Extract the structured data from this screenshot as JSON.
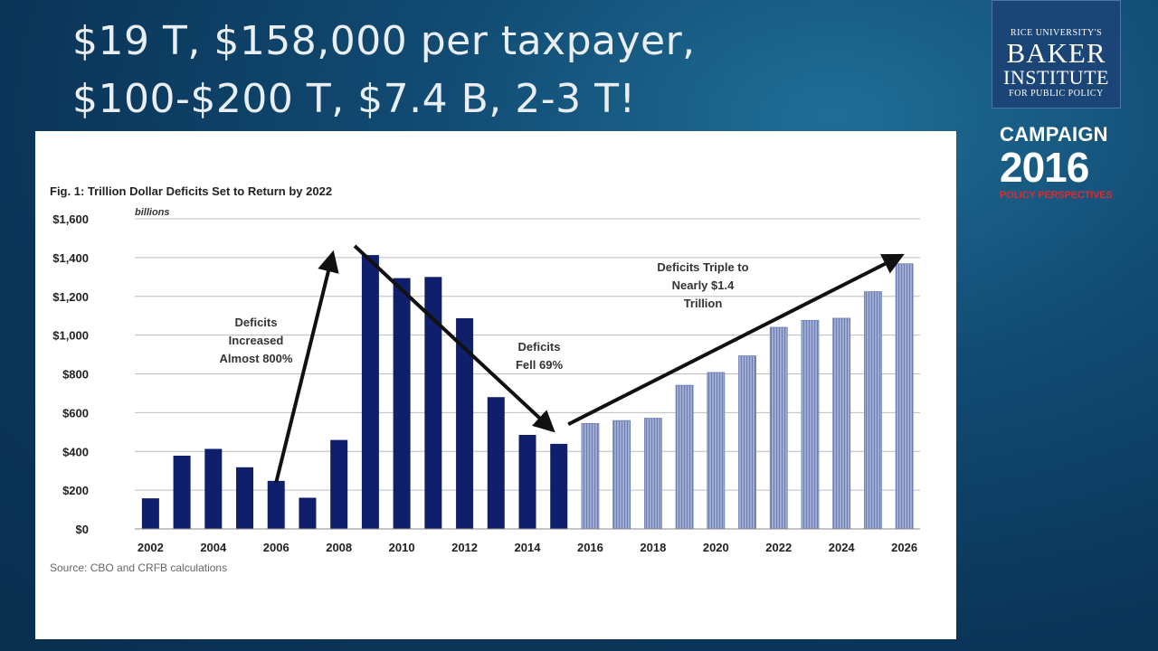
{
  "slide": {
    "title_lines": [
      "$19 T, $158,000 per taxpayer,",
      "$100-$200 T, $7.4 B, 2-3 T!"
    ]
  },
  "logo": {
    "line1": "RICE UNIVERSITY'S",
    "line2": "BAKER",
    "line3": "INSTITUTE",
    "line4": "FOR PUBLIC POLICY"
  },
  "campaign": {
    "line1": "CAMPAIGN",
    "line2": "2016",
    "line3": "POLICY PERSPECTIVES",
    "accent_color": "#e02a30"
  },
  "chart_data": {
    "type": "bar",
    "title": "Fig. 1: Trillion Dollar Deficits Set to Return by 2022",
    "unit_label": "billions",
    "source": "Source: CBO and CRFB calculations",
    "ylim": [
      0,
      1600
    ],
    "yticks": [
      0,
      200,
      400,
      600,
      800,
      1000,
      1200,
      1400,
      1600
    ],
    "ytick_labels": [
      "$0",
      "$200",
      "$400",
      "$600",
      "$800",
      "$1,000",
      "$1,200",
      "$1,400",
      "$1,600"
    ],
    "grid": true,
    "x": [
      2002,
      2003,
      2004,
      2005,
      2006,
      2007,
      2008,
      2009,
      2010,
      2011,
      2012,
      2013,
      2014,
      2015,
      2016,
      2017,
      2018,
      2019,
      2020,
      2021,
      2022,
      2023,
      2024,
      2025,
      2026
    ],
    "xtick_labels": [
      "2002",
      "2004",
      "2006",
      "2008",
      "2010",
      "2012",
      "2014",
      "2016",
      "2018",
      "2020",
      "2022",
      "2024",
      "2026"
    ],
    "series": [
      {
        "values": [
          158,
          378,
          413,
          318,
          248,
          161,
          459,
          1413,
          1294,
          1300,
          1087,
          680,
          485,
          439,
          null,
          null,
          null,
          null,
          null,
          null,
          null,
          null,
          null,
          null,
          null
        ],
        "color": "#0f1f6b"
      },
      {
        "values": [
          null,
          null,
          null,
          null,
          null,
          null,
          null,
          null,
          null,
          null,
          null,
          null,
          null,
          null,
          544,
          559,
          571,
          741,
          807,
          893,
          1040,
          1076,
          1087,
          1224,
          1368
        ],
        "color": "#8d9dc9"
      }
    ],
    "annotations": [
      {
        "lines": [
          "Deficits",
          "Increased",
          "Almost 800%"
        ],
        "from": [
          2006,
          240
        ],
        "to": [
          2007.8,
          1420
        ]
      },
      {
        "lines": [
          "Deficits",
          "Fell 69%"
        ],
        "from": [
          2008.5,
          1460
        ],
        "to": [
          2014.8,
          510
        ]
      },
      {
        "lines": [
          "Deficits Triple to",
          "Nearly $1.4",
          "Trillion"
        ],
        "from": [
          2015.3,
          540
        ],
        "to": [
          2025.9,
          1410
        ]
      }
    ]
  }
}
